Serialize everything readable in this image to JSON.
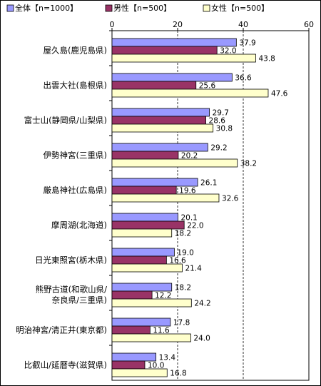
{
  "chart_data": {
    "type": "bar",
    "orientation": "horizontal",
    "title": "",
    "xlabel": "",
    "ylabel": "",
    "xlim": [
      0,
      60
    ],
    "xticks": [
      0,
      20,
      40,
      60
    ],
    "grid": "vertical dashed",
    "legend_position": "top",
    "categories": [
      "屋久島(鹿児島県)",
      "出雲大社(島根県)",
      "富士山(静岡県/山梨県)",
      "伊勢神宮(三重県)",
      "厳島神社(広島県)",
      "摩周湖(北海道)",
      "日光東照宮(栃木県)",
      "熊野古道(和歌山県/奈良県/三重県)",
      "明治神宮/清正井(東京都)",
      "比叡山/延暦寺(滋賀県)"
    ],
    "category_lines": [
      [
        "屋久島(鹿児島県)"
      ],
      [
        "出雲大社(島根県)"
      ],
      [
        "富士山(静岡県/山梨県)"
      ],
      [
        "伊勢神宮(三重県)"
      ],
      [
        "厳島神社(広島県)"
      ],
      [
        "摩周湖(北海道)"
      ],
      [
        "日光東照宮(栃木県)"
      ],
      [
        "熊野古道(和歌山県/",
        "奈良県/三重県)"
      ],
      [
        "明治神宮/清正井(東京都)"
      ],
      [
        "比叡山/延暦寺(滋賀県)"
      ]
    ],
    "series": [
      {
        "name": "全体【n=1000】",
        "color": "#9999ff",
        "values": [
          37.9,
          36.6,
          29.7,
          29.2,
          26.1,
          20.1,
          19.0,
          18.2,
          17.8,
          13.4
        ]
      },
      {
        "name": "男性【n=500】",
        "color": "#993366",
        "values": [
          32.0,
          25.6,
          28.6,
          20.2,
          19.6,
          22.0,
          16.6,
          12.2,
          11.6,
          10.0
        ]
      },
      {
        "name": "女性【n=500】",
        "color": "#ffffcc",
        "values": [
          43.8,
          47.6,
          30.8,
          38.2,
          32.6,
          18.2,
          21.4,
          24.2,
          24.0,
          16.8
        ]
      }
    ]
  }
}
